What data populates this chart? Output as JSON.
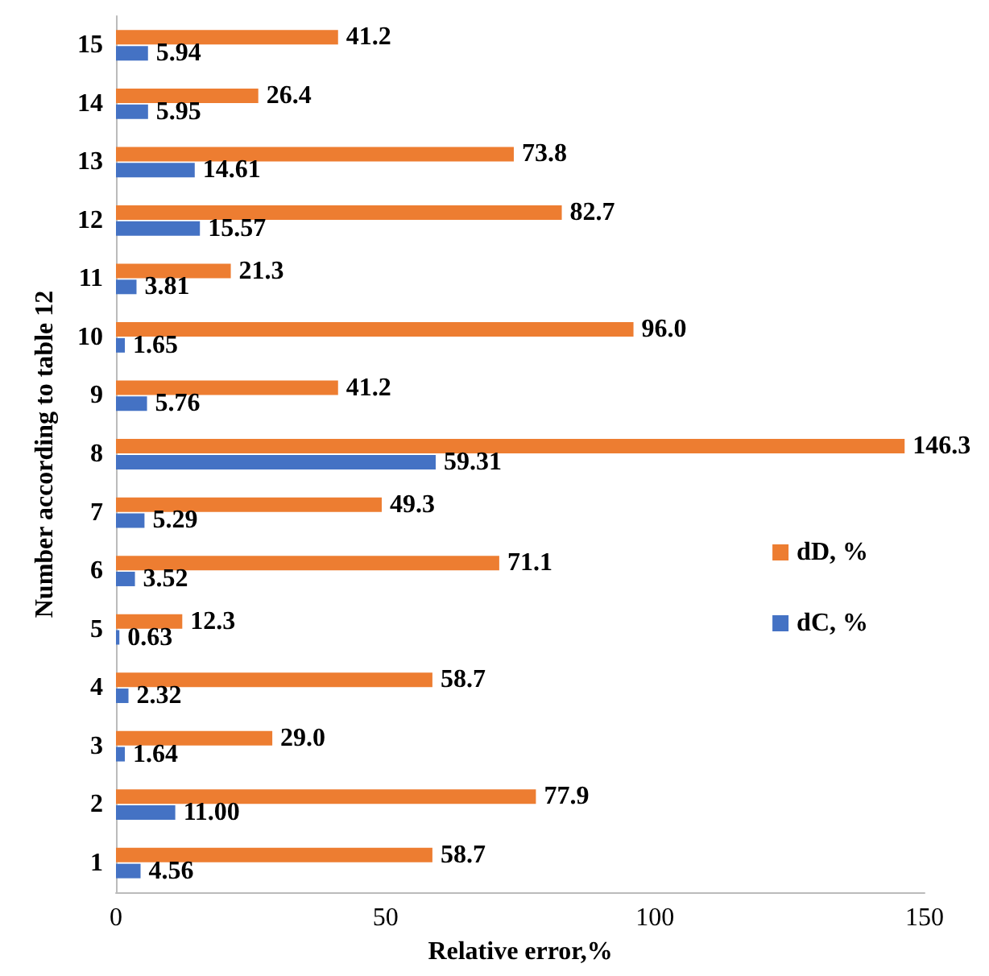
{
  "chart_data": {
    "type": "bar",
    "orientation": "horizontal",
    "xlabel": "Relative error,%",
    "ylabel": "Number according to table 12",
    "categories": [
      "15",
      "14",
      "13",
      "12",
      "11",
      "10",
      "9",
      "8",
      "7",
      "6",
      "5",
      "4",
      "3",
      "2",
      "1"
    ],
    "series": [
      {
        "name": "dD, %",
        "color": "#ed7d31",
        "values": [
          41.2,
          26.4,
          73.8,
          82.7,
          21.3,
          96.0,
          41.2,
          146.3,
          49.3,
          71.1,
          12.3,
          58.7,
          29.0,
          77.9,
          58.7
        ],
        "value_labels": [
          "41.2",
          "26.4",
          "73.8",
          "82.7",
          "21.3",
          "96.0",
          "41.2",
          "146.3",
          "49.3",
          "71.1",
          "12.3",
          "58.7",
          "29.0",
          "77.9",
          "58.7"
        ]
      },
      {
        "name": "dC, %",
        "color": "#4472c4",
        "values": [
          5.94,
          5.95,
          14.61,
          15.57,
          3.81,
          1.65,
          5.76,
          59.31,
          5.29,
          3.52,
          0.63,
          2.32,
          1.64,
          11.0,
          4.56
        ],
        "value_labels": [
          "5.94",
          "5.95",
          "14.61",
          "15.57",
          "3.81",
          "1.65",
          "5.76",
          "59.31",
          "5.29",
          "3.52",
          "0.63",
          "2.32",
          "1.64",
          "11.00",
          "4.56"
        ]
      }
    ],
    "xlim": [
      0,
      150
    ],
    "xticks": [
      0,
      50,
      100,
      150
    ],
    "grid": false,
    "legend": "right"
  }
}
